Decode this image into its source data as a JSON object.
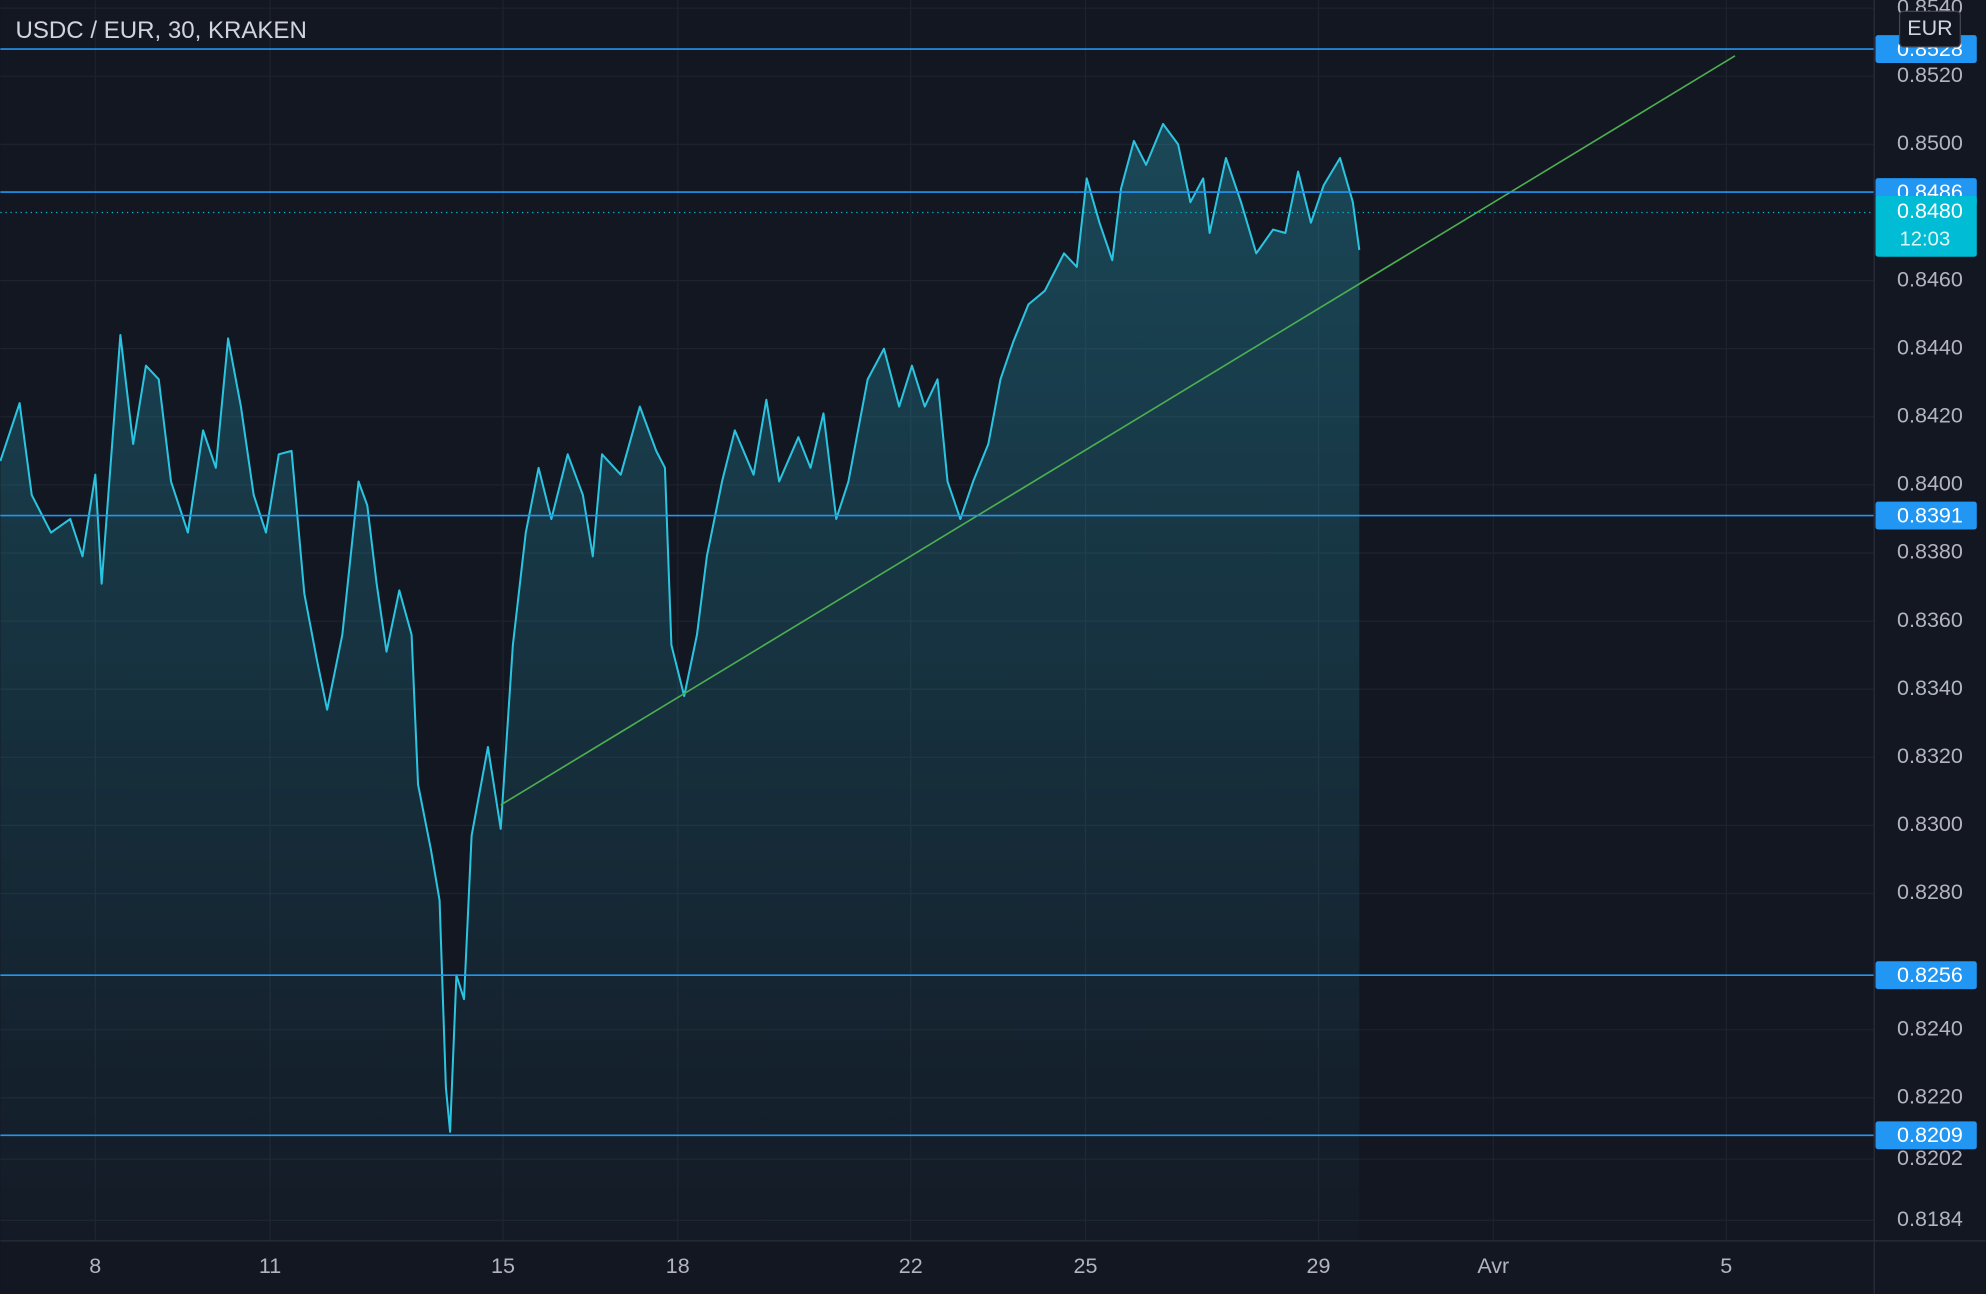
{
  "chart_data": {
    "type": "area",
    "title": "USDC / EUR, 30, KRAKEN",
    "currency": "EUR",
    "color": "#2bc4e0",
    "x": [
      6.37,
      6.7,
      6.91,
      7.24,
      7.57,
      7.78,
      8.0,
      8.11,
      8.43,
      8.65,
      8.87,
      9.09,
      9.3,
      9.59,
      9.85,
      10.07,
      10.28,
      10.5,
      10.72,
      10.93,
      11.15,
      11.37,
      11.59,
      11.8,
      11.98,
      12.24,
      12.52,
      12.67,
      12.83,
      13.0,
      13.22,
      13.43,
      13.54,
      13.76,
      13.91,
      14.02,
      14.09,
      14.2,
      14.33,
      14.46,
      14.74,
      14.96,
      15.17,
      15.39,
      15.61,
      15.83,
      16.11,
      16.37,
      16.54,
      16.7,
      17.02,
      17.35,
      17.63,
      17.78,
      17.89,
      18.11,
      18.33,
      18.5,
      18.76,
      18.98,
      19.3,
      19.52,
      19.74,
      20.07,
      20.28,
      20.5,
      20.72,
      20.93,
      21.26,
      21.54,
      21.8,
      22.02,
      22.24,
      22.46,
      22.63,
      22.85,
      23.07,
      23.33,
      23.54,
      23.76,
      24.02,
      24.3,
      24.63,
      24.85,
      25.02,
      25.24,
      25.46,
      25.61,
      25.83,
      26.04,
      26.33,
      26.59,
      26.8,
      27.02,
      27.13,
      27.41,
      27.67,
      27.93,
      28.22,
      28.43,
      28.65,
      28.87,
      29.09,
      29.37,
      29.59,
      29.7
    ],
    "values": [
      0.8407,
      0.8424,
      0.8397,
      0.8386,
      0.839,
      0.8379,
      0.8403,
      0.8371,
      0.8444,
      0.8412,
      0.8435,
      0.8431,
      0.8401,
      0.8386,
      0.8416,
      0.8405,
      0.8443,
      0.8423,
      0.8397,
      0.8386,
      0.8409,
      0.841,
      0.8368,
      0.8349,
      0.8334,
      0.8356,
      0.8401,
      0.8394,
      0.8371,
      0.8351,
      0.8369,
      0.8356,
      0.8312,
      0.8293,
      0.8278,
      0.8223,
      0.821,
      0.8256,
      0.8249,
      0.8297,
      0.8323,
      0.8299,
      0.8353,
      0.8386,
      0.8405,
      0.839,
      0.8409,
      0.8397,
      0.8379,
      0.8409,
      0.8403,
      0.8423,
      0.841,
      0.8405,
      0.8353,
      0.8338,
      0.8356,
      0.8379,
      0.8401,
      0.8416,
      0.8403,
      0.8425,
      0.8401,
      0.8414,
      0.8405,
      0.8421,
      0.839,
      0.8401,
      0.8431,
      0.844,
      0.8423,
      0.8435,
      0.8423,
      0.8431,
      0.8401,
      0.839,
      0.8401,
      0.8412,
      0.8431,
      0.8442,
      0.8453,
      0.8457,
      0.8468,
      0.8464,
      0.849,
      0.8477,
      0.8466,
      0.8487,
      0.8501,
      0.8494,
      0.8506,
      0.85,
      0.8483,
      0.849,
      0.8474,
      0.8496,
      0.8483,
      0.8468,
      0.8475,
      0.8474,
      0.8492,
      0.8477,
      0.8488,
      0.8496,
      0.8483,
      0.8469
    ],
    "xlim": [
      6.37,
      38.54
    ],
    "xticks": [
      8,
      11,
      15,
      18,
      22,
      25,
      29,
      {
        "value": 32,
        "label": "Avr"
      },
      {
        "value": 36,
        "label": "5"
      }
    ],
    "ylim": [
      0.8178,
      0.85424
    ],
    "yticks": [
      {
        "value": 0.854,
        "label": "0.8540"
      },
      {
        "value": 0.852,
        "label": "0.8520"
      },
      {
        "value": 0.85,
        "label": "0.8500"
      },
      {
        "value": 0.846,
        "label": "0.8460"
      },
      {
        "value": 0.844,
        "label": "0.8440"
      },
      {
        "value": 0.842,
        "label": "0.8420"
      },
      {
        "value": 0.84,
        "label": "0.8400"
      },
      {
        "value": 0.838,
        "label": "0.8380"
      },
      {
        "value": 0.836,
        "label": "0.8360"
      },
      {
        "value": 0.834,
        "label": "0.8340"
      },
      {
        "value": 0.832,
        "label": "0.8320"
      },
      {
        "value": 0.83,
        "label": "0.8300"
      },
      {
        "value": 0.828,
        "label": "0.8280"
      },
      {
        "value": 0.824,
        "label": "0.8240"
      },
      {
        "value": 0.822,
        "label": "0.8220"
      },
      0.8202,
      0.8184
    ],
    "grid": true,
    "levels": [
      0.8528,
      0.8486,
      0.8391,
      0.8256,
      0.8209
    ],
    "level_color": "#2196f3",
    "current_price": {
      "value": 0.848,
      "label": "0.8480",
      "countdown": "12:03",
      "color": "#00bcd4"
    },
    "trendline": {
      "x": [
        14.96,
        36.15
      ],
      "y": [
        0.8306,
        0.8526
      ],
      "color": "#4caf50"
    }
  }
}
